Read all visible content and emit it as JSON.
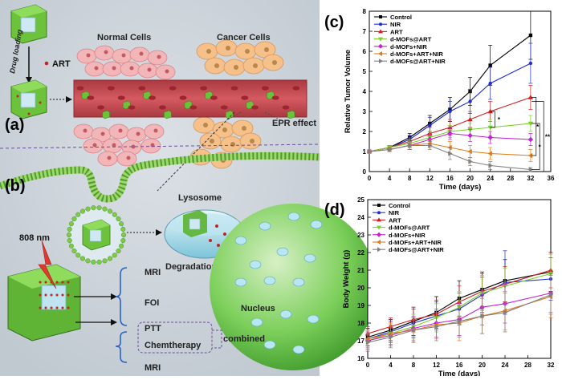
{
  "panels": {
    "a": "(a)",
    "b": "(b)",
    "c": "(c)",
    "d": "(d)"
  },
  "schematic": {
    "drug_loading": "Drug loading",
    "art": "ART",
    "normal_cells": "Normal Cells",
    "cancer_cells": "Cancer Cells",
    "epr_effect": "EPR effect",
    "lysosome": "Lysosome",
    "degradation": "Degradation of outer MOFs",
    "laser": "808 nm",
    "nucleus": "Nucleus",
    "modalities": [
      "MRI",
      "FOI",
      "PTT",
      "Chemtherapy",
      "MRI"
    ],
    "combined": "combined"
  },
  "colors": {
    "control": "#000000",
    "nir": "#1f2bd6",
    "art": "#d41f1f",
    "dmofs_art": "#7ad12b",
    "dmofs_nir": "#c21fd6",
    "dmofs_art_nir": "#e07b1a",
    "dmofs_at_art_nir": "#808080",
    "mof_green": "#6cc23a",
    "vessel": "#c9494f"
  },
  "chart_data": [
    {
      "type": "line",
      "panel": "(c)",
      "xlabel": "Time (days)",
      "ylabel": "Relative Tumor Volume",
      "xlim": [
        0,
        36
      ],
      "ylim": [
        0,
        8
      ],
      "xticks": [
        0,
        4,
        8,
        12,
        16,
        20,
        24,
        28,
        32,
        36
      ],
      "yticks": [
        0,
        1,
        2,
        3,
        4,
        5,
        6,
        7,
        8
      ],
      "legend_position": "top-left",
      "x": [
        0,
        4,
        8,
        12,
        16,
        20,
        24,
        32
      ],
      "series": [
        {
          "name": "Control",
          "marker": "square",
          "values": [
            1.0,
            1.2,
            1.7,
            2.4,
            3.1,
            4.0,
            5.3,
            6.8
          ],
          "errors": [
            0.05,
            0.1,
            0.2,
            0.4,
            0.6,
            0.7,
            1.0,
            1.2
          ]
        },
        {
          "name": "NIR",
          "marker": "circle",
          "values": [
            1.0,
            1.2,
            1.6,
            2.3,
            3.0,
            3.5,
            4.4,
            5.4
          ],
          "errors": [
            0.05,
            0.1,
            0.2,
            0.4,
            0.5,
            0.6,
            0.8,
            1.0
          ]
        },
        {
          "name": "ART",
          "marker": "triangle-up",
          "values": [
            1.0,
            1.2,
            1.5,
            1.9,
            2.2,
            2.6,
            3.0,
            3.7
          ],
          "errors": [
            0.05,
            0.1,
            0.2,
            0.3,
            0.4,
            0.4,
            0.5,
            0.6
          ]
        },
        {
          "name": "d-MOFs@ART",
          "marker": "triangle-down",
          "values": [
            1.0,
            1.2,
            1.4,
            1.7,
            2.0,
            2.1,
            2.2,
            2.4
          ],
          "errors": [
            0.05,
            0.1,
            0.2,
            0.3,
            0.3,
            0.3,
            0.4,
            0.4
          ]
        },
        {
          "name": "d-MOFs+NIR",
          "marker": "diamond",
          "values": [
            1.0,
            1.1,
            1.3,
            1.6,
            1.9,
            1.8,
            1.7,
            1.6
          ],
          "errors": [
            0.05,
            0.1,
            0.2,
            0.2,
            0.3,
            0.3,
            0.3,
            0.3
          ]
        },
        {
          "name": "d-MOFs+ART+NIR",
          "marker": "triangle-left",
          "values": [
            1.0,
            1.1,
            1.3,
            1.4,
            1.2,
            1.0,
            0.9,
            0.8
          ],
          "errors": [
            0.05,
            0.1,
            0.2,
            0.2,
            0.3,
            0.3,
            0.3,
            0.3
          ]
        },
        {
          "name": "d-MOFs@ART+NIR",
          "marker": "triangle-right",
          "values": [
            1.0,
            1.1,
            1.3,
            1.3,
            0.9,
            0.5,
            0.3,
            0.1
          ],
          "errors": [
            0.05,
            0.1,
            0.2,
            0.2,
            0.3,
            0.2,
            0.2,
            0.1
          ]
        }
      ],
      "annotations": [
        "*",
        "*",
        "*",
        "**"
      ]
    },
    {
      "type": "line",
      "panel": "(d)",
      "xlabel": "Time (days)",
      "ylabel": "Body Weight (g)",
      "xlim": [
        0,
        32
      ],
      "ylim": [
        16,
        25
      ],
      "xticks": [
        0,
        4,
        8,
        12,
        16,
        20,
        24,
        28,
        32
      ],
      "yticks": [
        16,
        17,
        18,
        19,
        20,
        21,
        22,
        23,
        24,
        25
      ],
      "legend_position": "top-left",
      "x": [
        0,
        4,
        8,
        12,
        16,
        20,
        24,
        32
      ],
      "series": [
        {
          "name": "Control",
          "marker": "square",
          "values": [
            17.2,
            17.6,
            18.1,
            18.6,
            19.4,
            19.9,
            20.4,
            20.9
          ],
          "errors": [
            0.5,
            0.6,
            0.8,
            0.9,
            1.0,
            1.0,
            1.2,
            1.1
          ]
        },
        {
          "name": "NIR",
          "marker": "circle",
          "values": [
            17.1,
            17.5,
            18.0,
            18.4,
            18.8,
            19.6,
            20.3,
            20.5
          ],
          "errors": [
            0.5,
            0.6,
            0.8,
            0.8,
            0.9,
            1.0,
            1.8,
            1.2
          ]
        },
        {
          "name": "ART",
          "marker": "triangle-up",
          "values": [
            17.4,
            17.8,
            18.2,
            18.5,
            19.2,
            19.8,
            20.2,
            21.0
          ],
          "errors": [
            0.4,
            0.5,
            0.7,
            0.8,
            0.9,
            1.0,
            1.0,
            1.0
          ]
        },
        {
          "name": "d-MOFs@ART",
          "marker": "triangle-down",
          "values": [
            17.0,
            17.4,
            17.8,
            18.3,
            18.9,
            19.7,
            20.1,
            20.8
          ],
          "errors": [
            0.5,
            0.6,
            0.7,
            0.8,
            0.9,
            1.0,
            1.0,
            1.1
          ]
        },
        {
          "name": "d-MOFs+NIR",
          "marker": "diamond",
          "values": [
            17.0,
            17.3,
            17.7,
            18.0,
            18.2,
            18.9,
            19.1,
            19.7
          ],
          "errors": [
            0.5,
            0.6,
            0.7,
            0.8,
            0.9,
            1.0,
            1.1,
            1.1
          ]
        },
        {
          "name": "d-MOFs+ART+NIR",
          "marker": "triangle-left",
          "values": [
            17.1,
            17.4,
            17.6,
            17.9,
            18.0,
            18.4,
            18.7,
            19.5
          ],
          "errors": [
            0.5,
            0.6,
            0.7,
            0.8,
            1.0,
            1.0,
            1.1,
            1.2
          ]
        },
        {
          "name": "d-MOFs@ART+NIR",
          "marker": "triangle-right",
          "values": [
            16.9,
            17.2,
            17.6,
            17.8,
            18.1,
            18.4,
            18.6,
            19.6
          ],
          "errors": [
            0.5,
            0.6,
            0.7,
            0.8,
            0.9,
            1.0,
            1.1,
            1.1
          ]
        }
      ]
    }
  ]
}
